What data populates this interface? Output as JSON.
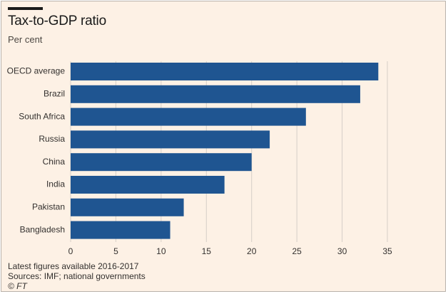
{
  "title": "Tax-to-GDP ratio",
  "subtitle": "Per cent",
  "footnotes": {
    "note": "Latest figures available 2016-2017",
    "sources": "Sources: IMF; national governments",
    "credit": "© FT"
  },
  "colors": {
    "background": "#fdf1e5",
    "bar": "#1f5591",
    "grid": "#d6cfc8",
    "text": "#33302e"
  },
  "chart_data": {
    "type": "bar",
    "orientation": "horizontal",
    "title": "Tax-to-GDP ratio",
    "subtitle": "Per cent",
    "categories": [
      "OECD average",
      "Brazil",
      "South Africa",
      "Russia",
      "China",
      "India",
      "Pakistan",
      "Bangladesh"
    ],
    "values": [
      34,
      32,
      26,
      22,
      20,
      17,
      12.5,
      11
    ],
    "xlim": [
      0,
      35
    ],
    "xticks": [
      0,
      5,
      10,
      15,
      20,
      25,
      30,
      35
    ],
    "xlabel": "",
    "ylabel": "",
    "grid": "vertical",
    "legend": "none"
  }
}
